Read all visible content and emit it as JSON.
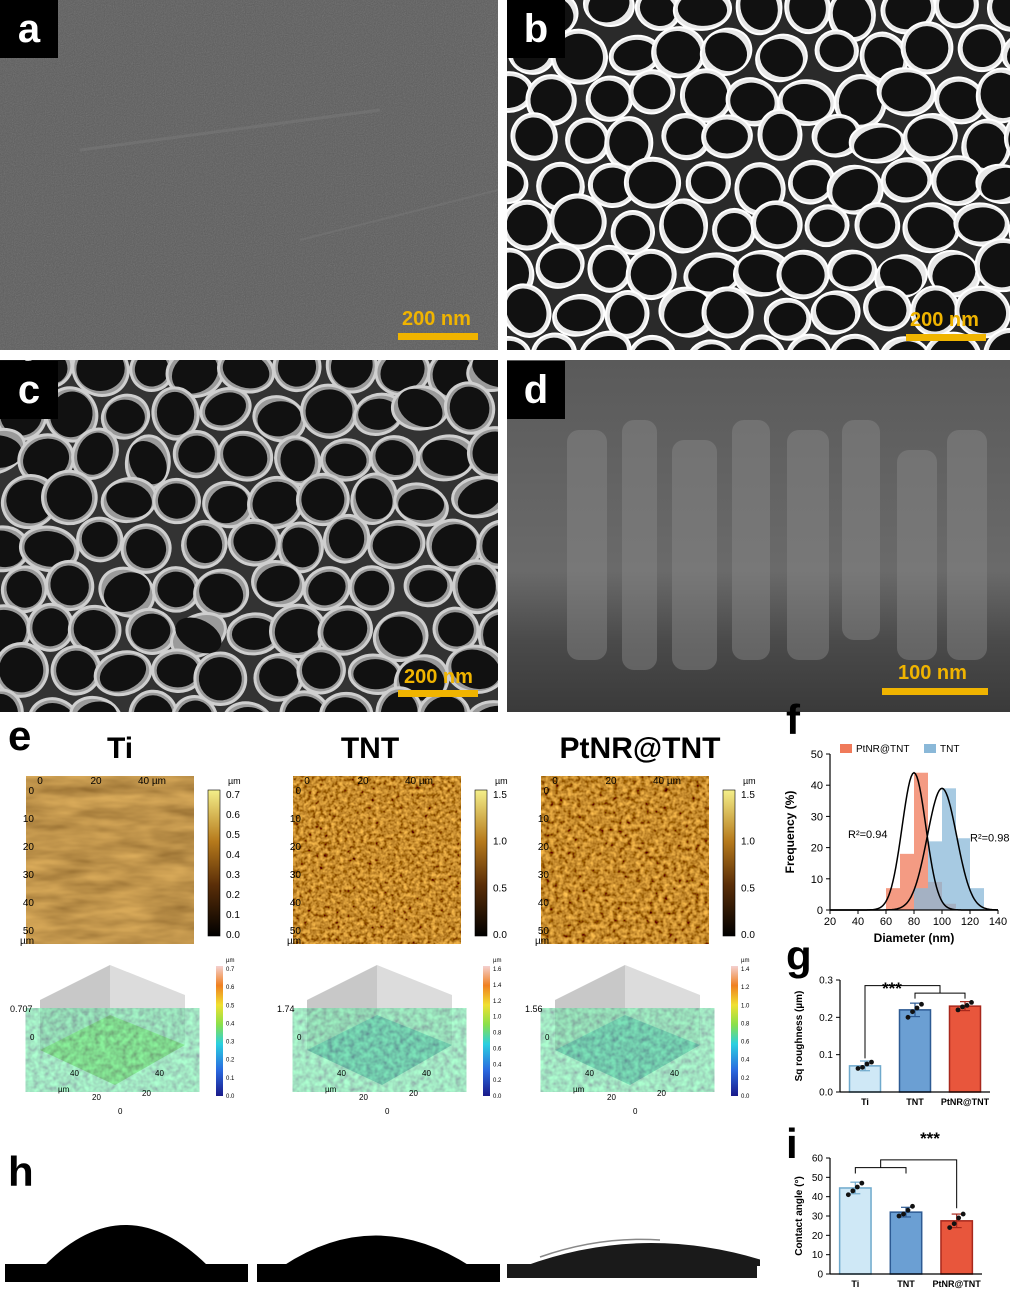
{
  "panels": {
    "a": {
      "label": "a",
      "scale": "200 nm"
    },
    "b": {
      "label": "b",
      "scale": "200 nm"
    },
    "c": {
      "label": "c",
      "scale": "200 nm"
    },
    "d": {
      "label": "d",
      "scale": "100 nm"
    },
    "e": {
      "label": "e"
    },
    "f": {
      "label": "f"
    },
    "g": {
      "label": "g"
    },
    "h": {
      "label": "h"
    },
    "i": {
      "label": "i"
    }
  },
  "afm": {
    "titles": [
      "Ti",
      "TNT",
      "PtNR@TNT"
    ],
    "x_ticks": [
      "0",
      "20",
      "40 µm"
    ],
    "y_ticks": [
      "0",
      "10",
      "20",
      "30",
      "40",
      "50"
    ],
    "y_unit": "µm",
    "cbar_unit": "µm",
    "cbar_ticks": [
      [
        "0.7",
        "0.6",
        "0.5",
        "0.4",
        "0.3",
        "0.2",
        "0.1",
        "0.0"
      ],
      [
        "1.5",
        "1.0",
        "0.5",
        "0.0"
      ],
      [
        "1.5",
        "1.0",
        "0.5",
        "0.0"
      ]
    ],
    "heights_3d": [
      "0.707",
      "1.74",
      "1.56"
    ],
    "axis3d_labels": [
      "µm",
      "40",
      "20",
      "0"
    ],
    "cbar3d_ticks": [
      [
        "0.7",
        "0.6",
        "0.5",
        "0.4",
        "0.3",
        "0.2",
        "0.1",
        "0.0"
      ],
      [
        "1.6",
        "1.4",
        "1.2",
        "1.0",
        "0.8",
        "0.6",
        "0.4",
        "0.2",
        "0.0"
      ],
      [
        "1.4",
        "1.2",
        "1.0",
        "0.8",
        "0.6",
        "0.4",
        "0.2",
        "0.0"
      ]
    ]
  },
  "chart_data": [
    {
      "type": "bar",
      "panel": "f",
      "xlabel": "Diameter (nm)",
      "ylabel": "Frequency (%)",
      "xlim": [
        20,
        140
      ],
      "ylim": [
        0,
        50
      ],
      "x_ticks": [
        20,
        40,
        60,
        80,
        100,
        120,
        140
      ],
      "y_ticks": [
        0,
        10,
        20,
        30,
        40,
        50
      ],
      "legend": "top",
      "series": [
        {
          "name": "PtNR@TNT",
          "color": "#f07a5a",
          "bins": [
            [
              60,
              70,
              7
            ],
            [
              70,
              80,
              18
            ],
            [
              80,
              90,
              44
            ],
            [
              90,
              100,
              9
            ],
            [
              100,
              110,
              2
            ]
          ]
        },
        {
          "name": "TNT",
          "color": "#8ab8d8",
          "bins": [
            [
              80,
              90,
              7
            ],
            [
              90,
              100,
              22
            ],
            [
              100,
              110,
              39
            ],
            [
              110,
              120,
              23
            ],
            [
              120,
              130,
              7
            ]
          ]
        }
      ],
      "fits": [
        {
          "series": "PtNR@TNT",
          "mean": 80,
          "sd": 8.5,
          "peak": 44
        },
        {
          "series": "TNT",
          "mean": 100,
          "sd": 10.5,
          "peak": 39
        }
      ],
      "annotations": [
        "R²=0.94",
        "R²=0.98"
      ]
    },
    {
      "type": "bar",
      "panel": "g",
      "categories": [
        "Ti",
        "TNT",
        "PtNR@TNT"
      ],
      "values": [
        0.07,
        0.22,
        0.23
      ],
      "errors": [
        0.013,
        0.018,
        0.012
      ],
      "points": [
        [
          0.063,
          0.066,
          0.075,
          0.08
        ],
        [
          0.2,
          0.215,
          0.225,
          0.235
        ],
        [
          0.22,
          0.228,
          0.232,
          0.24
        ]
      ],
      "colors": [
        "#cfe8f6",
        "#6b9fd3",
        "#e8563c"
      ],
      "edge_colors": [
        "#6fa9cc",
        "#2d5a93",
        "#a8281c"
      ],
      "ylabel": "Sq roughness (µm)",
      "ylim": [
        0,
        0.3
      ],
      "y_ticks": [
        0.0,
        0.1,
        0.2,
        0.3
      ],
      "significance": "***"
    },
    {
      "type": "bar",
      "panel": "i",
      "categories": [
        "Ti",
        "TNT",
        "PtNR@TNT"
      ],
      "values": [
        44.5,
        32,
        27.5
      ],
      "errors": [
        3.0,
        2.5,
        3.5
      ],
      "points": [
        [
          41,
          43,
          45,
          47
        ],
        [
          30,
          31,
          33,
          35
        ],
        [
          24,
          26,
          29,
          31
        ]
      ],
      "colors": [
        "#cfe8f6",
        "#6b9fd3",
        "#e8563c"
      ],
      "edge_colors": [
        "#6fa9cc",
        "#2d5a93",
        "#a8281c"
      ],
      "ylabel": "Contact angle (°)",
      "ylim": [
        0,
        60
      ],
      "y_ticks": [
        0,
        10,
        20,
        30,
        40,
        50,
        60
      ],
      "significance": "***"
    }
  ]
}
